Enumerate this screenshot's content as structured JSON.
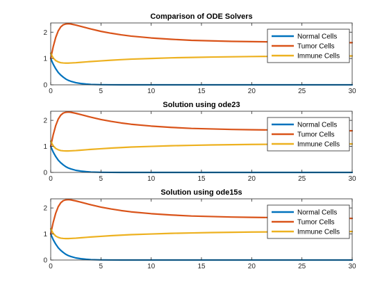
{
  "chart_data": [
    {
      "type": "line",
      "title": "Comparison of ODE Solvers",
      "xlabel": "",
      "ylabel": "",
      "xlim": [
        0,
        30
      ],
      "ylim": [
        0,
        2.35
      ],
      "xticks": [
        "0",
        "5",
        "10",
        "15",
        "20",
        "25",
        "30"
      ],
      "yticks": [
        "0",
        "1",
        "2"
      ],
      "grid": false,
      "legend_position": "top-right",
      "x": [
        0,
        0.25,
        0.5,
        0.75,
        1,
        1.25,
        1.5,
        1.75,
        2,
        2.5,
        3,
        3.5,
        4,
        5,
        6,
        7,
        8,
        10,
        12,
        14,
        16,
        18,
        20,
        22,
        24,
        26,
        28,
        30
      ],
      "series": [
        {
          "name": "Normal Cells",
          "color": "#0072BD",
          "values": [
            1.0,
            0.78,
            0.61,
            0.47,
            0.37,
            0.29,
            0.22,
            0.17,
            0.135,
            0.08,
            0.05,
            0.03,
            0.015,
            0.005,
            0.002,
            0.0,
            0.0,
            0.0,
            0.0,
            0.0,
            0.0,
            0.0,
            0.0,
            0.0,
            0.0,
            0.0,
            0.0,
            0.0
          ]
        },
        {
          "name": "Tumor Cells",
          "color": "#D95319",
          "values": [
            1.0,
            1.45,
            1.8,
            2.05,
            2.2,
            2.28,
            2.31,
            2.32,
            2.31,
            2.27,
            2.22,
            2.17,
            2.12,
            2.03,
            1.96,
            1.9,
            1.85,
            1.78,
            1.73,
            1.69,
            1.67,
            1.65,
            1.64,
            1.63,
            1.62,
            1.615,
            1.61,
            1.6
          ]
        },
        {
          "name": "Immune Cells",
          "color": "#EDB120",
          "values": [
            1.2,
            1.02,
            0.92,
            0.87,
            0.84,
            0.83,
            0.825,
            0.825,
            0.83,
            0.84,
            0.855,
            0.87,
            0.885,
            0.91,
            0.935,
            0.955,
            0.975,
            1.0,
            1.025,
            1.04,
            1.055,
            1.065,
            1.075,
            1.08,
            1.085,
            1.09,
            1.09,
            1.095
          ]
        }
      ]
    },
    {
      "type": "line",
      "title": "Solution using ode23",
      "xlabel": "",
      "ylabel": "",
      "xlim": [
        0,
        30
      ],
      "ylim": [
        0,
        2.35
      ],
      "xticks": [
        "0",
        "5",
        "10",
        "15",
        "20",
        "25",
        "30"
      ],
      "yticks": [
        "0",
        "1",
        "2"
      ],
      "grid": false,
      "legend_position": "top-right",
      "x": [
        0,
        0.25,
        0.5,
        0.75,
        1,
        1.25,
        1.5,
        1.75,
        2,
        2.5,
        3,
        3.5,
        4,
        5,
        6,
        7,
        8,
        10,
        12,
        14,
        16,
        18,
        20,
        22,
        24,
        26,
        28,
        30
      ],
      "series": [
        {
          "name": "Normal Cells",
          "color": "#0072BD",
          "values": [
            1.0,
            0.78,
            0.61,
            0.47,
            0.37,
            0.29,
            0.22,
            0.17,
            0.135,
            0.08,
            0.05,
            0.03,
            0.015,
            0.005,
            0.002,
            0.0,
            0.0,
            0.0,
            0.0,
            0.0,
            0.0,
            0.0,
            0.0,
            0.0,
            0.0,
            0.0,
            0.0,
            0.0
          ]
        },
        {
          "name": "Tumor Cells",
          "color": "#D95319",
          "values": [
            1.0,
            1.45,
            1.8,
            2.05,
            2.2,
            2.28,
            2.31,
            2.32,
            2.31,
            2.27,
            2.22,
            2.17,
            2.12,
            2.03,
            1.96,
            1.9,
            1.85,
            1.78,
            1.73,
            1.69,
            1.67,
            1.65,
            1.64,
            1.63,
            1.62,
            1.615,
            1.61,
            1.6
          ]
        },
        {
          "name": "Immune Cells",
          "color": "#EDB120",
          "values": [
            1.2,
            1.02,
            0.92,
            0.87,
            0.84,
            0.83,
            0.825,
            0.825,
            0.83,
            0.84,
            0.855,
            0.87,
            0.885,
            0.91,
            0.935,
            0.955,
            0.975,
            1.0,
            1.025,
            1.04,
            1.055,
            1.065,
            1.075,
            1.08,
            1.085,
            1.09,
            1.09,
            1.095
          ]
        }
      ]
    },
    {
      "type": "line",
      "title": "Solution using ode15s",
      "xlabel": "",
      "ylabel": "",
      "xlim": [
        0,
        30
      ],
      "ylim": [
        0,
        2.35
      ],
      "xticks": [
        "0",
        "5",
        "10",
        "15",
        "20",
        "25",
        "30"
      ],
      "yticks": [
        "0",
        "1",
        "2"
      ],
      "grid": false,
      "legend_position": "top-right",
      "x": [
        0,
        0.25,
        0.5,
        0.75,
        1,
        1.25,
        1.5,
        1.75,
        2,
        2.5,
        3,
        3.5,
        4,
        5,
        6,
        7,
        8,
        10,
        12,
        14,
        16,
        18,
        20,
        22,
        24,
        26,
        28,
        30
      ],
      "series": [
        {
          "name": "Normal Cells",
          "color": "#0072BD",
          "values": [
            1.0,
            0.78,
            0.61,
            0.47,
            0.37,
            0.29,
            0.22,
            0.17,
            0.135,
            0.08,
            0.05,
            0.03,
            0.015,
            0.005,
            0.002,
            0.0,
            0.0,
            0.0,
            0.0,
            0.0,
            0.0,
            0.0,
            0.0,
            0.0,
            0.0,
            0.0,
            0.0,
            0.0
          ]
        },
        {
          "name": "Tumor Cells",
          "color": "#D95319",
          "values": [
            1.0,
            1.45,
            1.8,
            2.05,
            2.2,
            2.28,
            2.31,
            2.32,
            2.31,
            2.27,
            2.22,
            2.17,
            2.12,
            2.03,
            1.96,
            1.9,
            1.85,
            1.78,
            1.73,
            1.69,
            1.67,
            1.65,
            1.64,
            1.63,
            1.62,
            1.615,
            1.61,
            1.6
          ]
        },
        {
          "name": "Immune Cells",
          "color": "#EDB120",
          "values": [
            1.2,
            1.02,
            0.92,
            0.87,
            0.84,
            0.83,
            0.825,
            0.825,
            0.83,
            0.84,
            0.855,
            0.87,
            0.885,
            0.91,
            0.935,
            0.955,
            0.975,
            1.0,
            1.025,
            1.04,
            1.055,
            1.065,
            1.075,
            1.08,
            1.085,
            1.09,
            1.09,
            1.095
          ]
        }
      ]
    }
  ]
}
